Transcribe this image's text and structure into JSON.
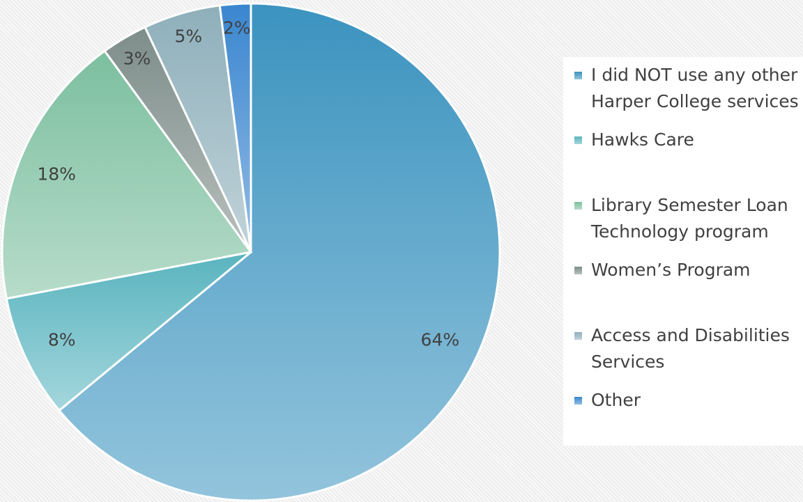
{
  "chart_data": {
    "type": "pie",
    "categories": [
      "I did NOT use any other Harper College services",
      "Hawks Care",
      "Library Semester Loan Technology program",
      "Women’s Program",
      "Access and Disabilities Services",
      "Other"
    ],
    "values": [
      64,
      8,
      18,
      3,
      5,
      2
    ],
    "value_labels": [
      "64%",
      "8%",
      "18%",
      "3%",
      "5%",
      "2%"
    ],
    "colors": [
      "#3b93bf",
      "#59b4bf",
      "#7cbf9f",
      "#7d8d89",
      "#8eafba",
      "#3a86cf"
    ]
  }
}
